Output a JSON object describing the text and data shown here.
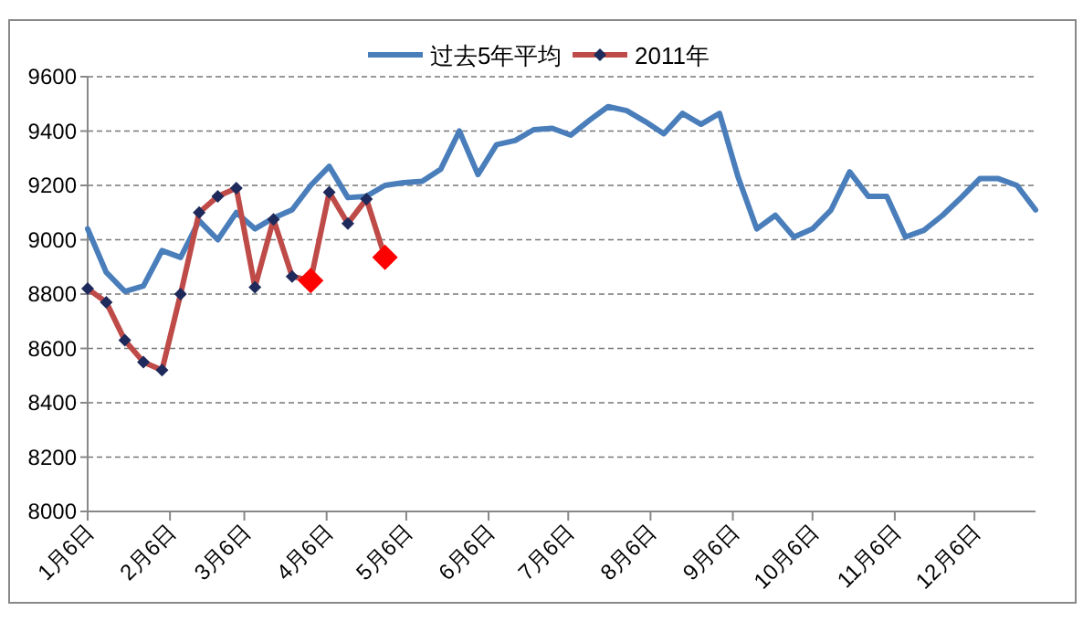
{
  "chart_data": {
    "type": "line",
    "x": [
      "--01-06",
      "--01-13",
      "--01-20",
      "--01-27",
      "--02-03",
      "--02-10",
      "--02-17",
      "--02-24",
      "--03-03",
      "--03-10",
      "--03-17",
      "--03-24",
      "--03-31",
      "--04-07",
      "--04-14",
      "--04-21",
      "--04-28",
      "--05-05",
      "--05-12",
      "--05-19",
      "--05-26",
      "--06-02",
      "--06-09",
      "--06-16",
      "--06-23",
      "--06-30",
      "--07-07",
      "--07-14",
      "--07-21",
      "--07-28",
      "--08-04",
      "--08-11",
      "--08-18",
      "--08-25",
      "--09-01",
      "--09-08",
      "--09-15",
      "--09-22",
      "--09-29",
      "--10-06",
      "--10-13",
      "--10-20",
      "--10-27",
      "--11-03",
      "--11-10",
      "--11-17",
      "--11-24",
      "--12-01",
      "--12-08",
      "--12-15",
      "--12-22",
      "--12-29"
    ],
    "series": [
      {
        "name": "过去5年平均",
        "color": "#4a7ebb",
        "marker": "none",
        "values": [
          9040,
          8880,
          8810,
          8830,
          8960,
          8935,
          9070,
          9000,
          9100,
          9040,
          9080,
          9110,
          9200,
          9270,
          9155,
          9160,
          9200,
          9210,
          9215,
          9260,
          9400,
          9240,
          9350,
          9365,
          9405,
          9410,
          9385,
          9440,
          9490,
          9475,
          9435,
          9390,
          9465,
          9425,
          9465,
          9230,
          9040,
          9090,
          9010,
          9040,
          9110,
          9250,
          9160,
          9160,
          9010,
          9035,
          9090,
          9155,
          9225,
          9225,
          9200,
          9110
        ]
      },
      {
        "name": "2011年",
        "color": "#be4b48",
        "marker": "diamond",
        "values": [
          8820,
          8770,
          8630,
          8550,
          8520,
          8800,
          9100,
          9160,
          9190,
          8825,
          9075,
          8865,
          8850,
          9175,
          9060,
          9150,
          8935,
          null,
          null,
          null,
          null,
          null,
          null,
          null,
          null,
          null,
          null,
          null,
          null,
          null,
          null,
          null,
          null,
          null,
          null,
          null,
          null,
          null,
          null,
          null,
          null,
          null,
          null,
          null,
          null,
          null,
          null,
          null,
          null,
          null,
          null,
          null
        ]
      },
      {
        "type": "scatter",
        "color": "#ff0000",
        "marker": "diamond",
        "values": [
          null,
          null,
          null,
          null,
          null,
          null,
          null,
          null,
          null,
          null,
          null,
          null,
          8850,
          null,
          null,
          null,
          8935,
          null,
          null,
          null,
          null,
          null,
          null,
          null,
          null,
          null,
          null,
          null,
          null,
          null,
          null,
          null,
          null,
          null,
          null,
          null,
          null,
          null,
          null,
          null,
          null,
          null,
          null,
          null,
          null,
          null,
          null,
          null,
          null,
          null,
          null,
          null
        ]
      }
    ],
    "xlim": [
      "--01-06",
      "--12-29"
    ],
    "xticks": [
      {
        "value": "--01-06",
        "label": "1月6日"
      },
      {
        "value": "--02-06",
        "label": "2月6日"
      },
      {
        "value": "--03-06",
        "label": "3月6日"
      },
      {
        "value": "--04-06",
        "label": "4月6日"
      },
      {
        "value": "--05-06",
        "label": "5月6日"
      },
      {
        "value": "--06-06",
        "label": "6月6日"
      },
      {
        "value": "--07-06",
        "label": "7月6日"
      },
      {
        "value": "--08-06",
        "label": "8月6日"
      },
      {
        "value": "--09-06",
        "label": "9月6日"
      },
      {
        "value": "--10-06",
        "label": "10月6日"
      },
      {
        "value": "--11-06",
        "label": "11月6日"
      },
      {
        "value": "--12-06",
        "label": "12月6日"
      }
    ],
    "ylim": [
      8000,
      9600
    ],
    "yticks": [
      8000,
      8200,
      8400,
      8600,
      8800,
      9000,
      9200,
      9400,
      9600
    ],
    "grid": "y",
    "legend": "top",
    "line_style": "solid"
  }
}
